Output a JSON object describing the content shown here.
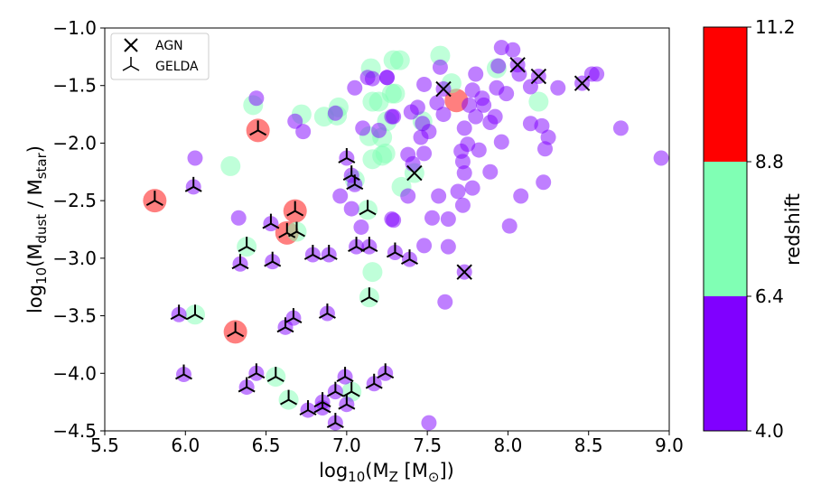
{
  "chart_data": {
    "type": "scatter",
    "title": "",
    "xlabel_parts": [
      {
        "t": "log",
        "sub": false
      },
      {
        "t": "10",
        "sub": true
      },
      {
        "t": "(M",
        "sub": false
      },
      {
        "t": "Z",
        "sub": true
      },
      {
        "t": " [M",
        "sub": false
      },
      {
        "t": "⊙",
        "sub": true
      },
      {
        "t": "])",
        "sub": false
      }
    ],
    "ylabel_parts": [
      {
        "t": "log",
        "sub": false
      },
      {
        "t": "10",
        "sub": true
      },
      {
        "t": "(M",
        "sub": false
      },
      {
        "t": "dust",
        "sub": true
      },
      {
        "t": " / M",
        "sub": false
      },
      {
        "t": "star",
        "sub": true
      },
      {
        "t": ")",
        "sub": false
      }
    ],
    "xlim": [
      5.5,
      9.0
    ],
    "ylim": [
      -4.5,
      -1.0
    ],
    "xticks": [
      "5.5",
      "6.0",
      "6.5",
      "7.0",
      "7.5",
      "8.0",
      "8.5",
      "9.0"
    ],
    "yticks": [
      "−1.0",
      "−1.5",
      "−2.0",
      "−2.5",
      "−3.0",
      "−3.5",
      "−4.0",
      "−4.5"
    ],
    "grid": false,
    "legend": {
      "placement": "top-left",
      "entries": [
        {
          "label": "AGN",
          "marker": "x"
        },
        {
          "label": "GELDA",
          "marker": "tri-down"
        }
      ]
    },
    "colorbar": {
      "label": "redshift",
      "ticks": [
        "4.0",
        "6.4",
        "8.8",
        "11.2"
      ],
      "bins": [
        {
          "range": [
            4.0,
            6.4
          ],
          "color": "#8000ff"
        },
        {
          "range": [
            6.4,
            8.8
          ],
          "color": "#80ffb4"
        },
        {
          "range": [
            8.8,
            11.2
          ],
          "color": "#ff0000"
        }
      ]
    },
    "point_fields": [
      "log10_MZ",
      "log10_Mdust_Mstar",
      "redshift_bin",
      "marker"
    ],
    "points": [
      [
        7.96,
        -1.17,
        0,
        ""
      ],
      [
        8.03,
        -1.19,
        0,
        ""
      ],
      [
        7.94,
        -1.33,
        0,
        ""
      ],
      [
        8.07,
        -1.4,
        0,
        ""
      ],
      [
        8.14,
        -1.51,
        0,
        ""
      ],
      [
        8.31,
        -1.52,
        0,
        ""
      ],
      [
        8.52,
        -1.4,
        0,
        ""
      ],
      [
        8.55,
        -1.4,
        0,
        ""
      ],
      [
        7.8,
        -1.4,
        0,
        ""
      ],
      [
        7.48,
        -1.49,
        0,
        ""
      ],
      [
        7.58,
        -1.34,
        0,
        ""
      ],
      [
        7.25,
        -1.43,
        0,
        ""
      ],
      [
        7.56,
        -1.65,
        0,
        ""
      ],
      [
        7.6,
        -1.75,
        0,
        ""
      ],
      [
        7.78,
        -1.54,
        0,
        ""
      ],
      [
        7.84,
        -1.61,
        0,
        ""
      ],
      [
        7.85,
        -1.67,
        0,
        ""
      ],
      [
        7.76,
        -1.67,
        0,
        ""
      ],
      [
        7.8,
        -1.77,
        0,
        ""
      ],
      [
        7.92,
        -1.77,
        0,
        ""
      ],
      [
        7.89,
        -1.82,
        0,
        ""
      ],
      [
        7.93,
        -1.52,
        0,
        ""
      ],
      [
        7.99,
        -1.57,
        0,
        ""
      ],
      [
        7.29,
        -1.77,
        0,
        ""
      ],
      [
        7.4,
        -1.73,
        0,
        ""
      ],
      [
        7.44,
        -1.69,
        0,
        ""
      ],
      [
        7.47,
        -1.83,
        0,
        ""
      ],
      [
        7.51,
        -1.9,
        0,
        ""
      ],
      [
        7.46,
        -1.95,
        0,
        ""
      ],
      [
        7.48,
        -2.09,
        0,
        ""
      ],
      [
        7.38,
        -2.1,
        0,
        ""
      ],
      [
        7.41,
        -2.18,
        0,
        ""
      ],
      [
        7.73,
        -1.87,
        0,
        ""
      ],
      [
        7.75,
        -2.01,
        0,
        ""
      ],
      [
        7.71,
        -2.07,
        0,
        ""
      ],
      [
        7.82,
        -2.06,
        0,
        ""
      ],
      [
        7.96,
        -1.99,
        0,
        ""
      ],
      [
        7.72,
        -2.16,
        0,
        ""
      ],
      [
        7.73,
        -2.26,
        0,
        ""
      ],
      [
        7.89,
        -2.25,
        0,
        ""
      ],
      [
        8.14,
        -1.83,
        0,
        ""
      ],
      [
        8.21,
        -1.85,
        0,
        ""
      ],
      [
        8.25,
        -1.95,
        0,
        ""
      ],
      [
        8.23,
        -2.05,
        0,
        ""
      ],
      [
        8.7,
        -1.87,
        0,
        ""
      ],
      [
        8.95,
        -2.13,
        0,
        ""
      ],
      [
        8.22,
        -2.34,
        0,
        ""
      ],
      [
        8.08,
        -2.46,
        0,
        ""
      ],
      [
        7.78,
        -2.39,
        0,
        ""
      ],
      [
        7.69,
        -2.42,
        0,
        ""
      ],
      [
        7.72,
        -2.54,
        0,
        ""
      ],
      [
        7.57,
        -2.46,
        0,
        ""
      ],
      [
        7.38,
        -2.46,
        0,
        ""
      ],
      [
        7.29,
        -2.67,
        0,
        ""
      ],
      [
        7.53,
        -2.65,
        0,
        ""
      ],
      [
        7.63,
        -2.66,
        0,
        ""
      ],
      [
        8.01,
        -2.72,
        0,
        ""
      ],
      [
        7.48,
        -2.89,
        0,
        ""
      ],
      [
        7.63,
        -2.9,
        0,
        ""
      ],
      [
        7.61,
        -3.38,
        0,
        ""
      ],
      [
        7.51,
        -4.43,
        0,
        ""
      ],
      [
        6.44,
        -1.61,
        0,
        ""
      ],
      [
        6.68,
        -1.81,
        0,
        ""
      ],
      [
        6.73,
        -1.9,
        0,
        ""
      ],
      [
        7.05,
        -1.52,
        0,
        ""
      ],
      [
        7.13,
        -1.43,
        0,
        ""
      ],
      [
        7.16,
        -1.44,
        0,
        ""
      ],
      [
        7.25,
        -1.43,
        0,
        ""
      ],
      [
        6.93,
        -1.74,
        0,
        ""
      ],
      [
        7.1,
        -1.87,
        0,
        ""
      ],
      [
        7.2,
        -1.89,
        0,
        ""
      ],
      [
        7.28,
        -1.77,
        0,
        ""
      ],
      [
        6.06,
        -2.13,
        0,
        ""
      ],
      [
        6.96,
        -2.46,
        0,
        ""
      ],
      [
        7.03,
        -2.57,
        0,
        ""
      ],
      [
        6.33,
        -2.65,
        0,
        ""
      ],
      [
        7.09,
        -2.73,
        0,
        ""
      ],
      [
        7.28,
        -2.66,
        0,
        ""
      ],
      [
        7.6,
        -1.53,
        0,
        "AGN"
      ],
      [
        8.06,
        -1.32,
        0,
        "AGN"
      ],
      [
        8.19,
        -1.42,
        0,
        "AGN"
      ],
      [
        8.46,
        -1.48,
        0,
        "AGN"
      ],
      [
        7.73,
        -3.12,
        0,
        "AGN"
      ],
      [
        7.0,
        -2.13,
        0,
        "GELDA"
      ],
      [
        7.03,
        -2.28,
        0,
        "GELDA"
      ],
      [
        7.05,
        -2.36,
        0,
        "GELDA"
      ],
      [
        6.05,
        -2.38,
        0,
        "GELDA"
      ],
      [
        6.53,
        -2.7,
        0,
        "GELDA"
      ],
      [
        6.34,
        -3.05,
        0,
        "GELDA"
      ],
      [
        6.54,
        -3.03,
        0,
        "GELDA"
      ],
      [
        6.79,
        -2.97,
        0,
        "GELDA"
      ],
      [
        6.89,
        -2.97,
        0,
        "GELDA"
      ],
      [
        7.06,
        -2.9,
        0,
        "GELDA"
      ],
      [
        7.14,
        -2.9,
        0,
        "GELDA"
      ],
      [
        7.3,
        -2.95,
        0,
        "GELDA"
      ],
      [
        7.39,
        -3.01,
        0,
        "GELDA"
      ],
      [
        5.96,
        -3.49,
        0,
        "GELDA"
      ],
      [
        6.67,
        -3.52,
        0,
        "GELDA"
      ],
      [
        6.62,
        -3.6,
        0,
        "GELDA"
      ],
      [
        6.88,
        -3.48,
        0,
        "GELDA"
      ],
      [
        5.99,
        -4.01,
        0,
        "GELDA"
      ],
      [
        6.44,
        -4.0,
        0,
        "GELDA"
      ],
      [
        6.38,
        -4.12,
        0,
        "GELDA"
      ],
      [
        6.76,
        -4.32,
        0,
        "GELDA"
      ],
      [
        6.85,
        -4.25,
        0,
        "GELDA"
      ],
      [
        6.85,
        -4.3,
        0,
        "GELDA"
      ],
      [
        6.93,
        -4.16,
        0,
        "GELDA"
      ],
      [
        6.99,
        -4.03,
        0,
        "GELDA"
      ],
      [
        7.0,
        -4.27,
        0,
        "GELDA"
      ],
      [
        6.93,
        -4.43,
        0,
        "GELDA"
      ],
      [
        7.17,
        -4.09,
        0,
        "GELDA"
      ],
      [
        7.24,
        -4.0,
        0,
        "GELDA"
      ],
      [
        7.15,
        -1.35,
        1,
        ""
      ],
      [
        7.29,
        -1.28,
        1,
        ""
      ],
      [
        6.42,
        -1.67,
        1,
        ""
      ],
      [
        6.72,
        -1.75,
        1,
        ""
      ],
      [
        6.86,
        -1.77,
        1,
        ""
      ],
      [
        6.95,
        -1.69,
        1,
        ""
      ],
      [
        6.94,
        -1.76,
        1,
        ""
      ],
      [
        7.16,
        -1.64,
        1,
        ""
      ],
      [
        7.2,
        -1.64,
        1,
        ""
      ],
      [
        7.28,
        -1.57,
        1,
        ""
      ],
      [
        7.14,
        -1.94,
        1,
        ""
      ],
      [
        7.22,
        -1.95,
        1,
        ""
      ],
      [
        7.25,
        -1.81,
        1,
        ""
      ],
      [
        7.16,
        -2.14,
        1,
        ""
      ],
      [
        7.22,
        -2.11,
        1,
        ""
      ],
      [
        6.28,
        -2.2,
        1,
        ""
      ],
      [
        7.05,
        -2.32,
        1,
        ""
      ],
      [
        7.58,
        -1.24,
        1,
        ""
      ],
      [
        7.33,
        -1.28,
        1,
        ""
      ],
      [
        7.3,
        -1.57,
        1,
        ""
      ],
      [
        7.65,
        -1.48,
        1,
        ""
      ],
      [
        7.93,
        -1.35,
        1,
        ""
      ],
      [
        8.19,
        -1.64,
        1,
        ""
      ],
      [
        7.24,
        -2.09,
        1,
        ""
      ],
      [
        7.47,
        -1.81,
        1,
        ""
      ],
      [
        7.34,
        -2.38,
        1,
        ""
      ],
      [
        7.16,
        -3.12,
        1,
        ""
      ],
      [
        7.42,
        -2.26,
        1,
        "AGN"
      ],
      [
        7.13,
        -2.58,
        1,
        "GELDA"
      ],
      [
        6.38,
        -2.9,
        1,
        "GELDA"
      ],
      [
        7.14,
        -3.34,
        1,
        "GELDA"
      ],
      [
        6.06,
        -3.49,
        1,
        "GELDA"
      ],
      [
        6.56,
        -4.03,
        1,
        "GELDA"
      ],
      [
        6.64,
        -4.23,
        1,
        "GELDA"
      ],
      [
        7.03,
        -4.16,
        1,
        "GELDA"
      ],
      [
        6.69,
        -2.77,
        1,
        "GELDA"
      ],
      [
        7.68,
        -1.63,
        2,
        ""
      ],
      [
        5.81,
        -2.5,
        2,
        "GELDA"
      ],
      [
        6.45,
        -1.89,
        2,
        "GELDA"
      ],
      [
        6.68,
        -2.59,
        2,
        "GELDA"
      ],
      [
        6.63,
        -2.78,
        2,
        "GELDA"
      ],
      [
        6.31,
        -3.64,
        2,
        "GELDA"
      ]
    ]
  }
}
